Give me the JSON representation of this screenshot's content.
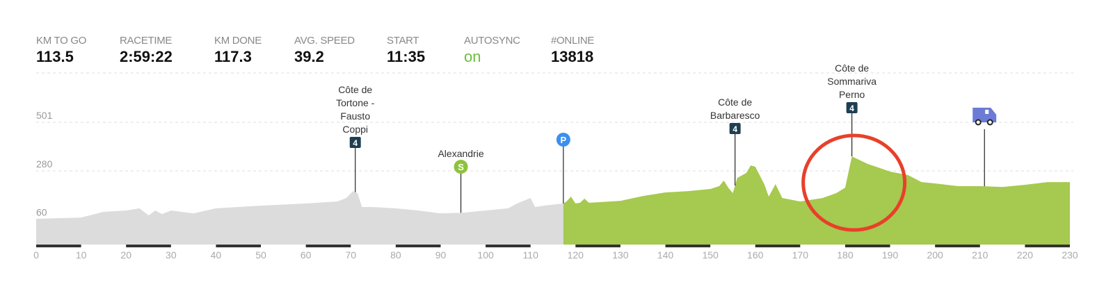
{
  "stats": [
    {
      "label": "KM TO GO",
      "value": "113.5"
    },
    {
      "label": "RACETIME",
      "value": "2:59:22"
    },
    {
      "label": "KM DONE",
      "value": "117.3"
    },
    {
      "label": "AVG. SPEED",
      "value": "39.2"
    },
    {
      "label": "START",
      "value": "11:35"
    },
    {
      "label": "AUTOSYNC",
      "value": "on"
    },
    {
      "label": "#ONLINE",
      "value": "13818"
    }
  ],
  "colors": {
    "done": "#a6c94f",
    "remaining": "#dcdcdc",
    "climb_badge": "#1e3f52",
    "sprint": "#8fc23c",
    "pause": "#3b8ff0",
    "truck": "#6b7bd6",
    "highlight_circle": "#e8402a",
    "autosync_on": "#6cbf3c"
  },
  "chart_data": {
    "type": "area",
    "xlabel": "",
    "ylabel": "",
    "xlim": [
      0,
      230
    ],
    "xticks": [
      "0",
      "10",
      "20",
      "30",
      "40",
      "50",
      "60",
      "70",
      "80",
      "90",
      "100",
      "110",
      "120",
      "130",
      "140",
      "150",
      "160",
      "170",
      "180",
      "190",
      "200",
      "210",
      "220",
      "230"
    ],
    "yticks": [
      "501",
      "280",
      "60"
    ],
    "grid": true,
    "km_done": 117.3,
    "profile": {
      "km": [
        0,
        10,
        15,
        20,
        23,
        25,
        26.5,
        28,
        30,
        35,
        40,
        50,
        60,
        67,
        69,
        70.5,
        71.5,
        72.5,
        75,
        80,
        85,
        90,
        95,
        100,
        105,
        107,
        110,
        111,
        113,
        117.3,
        118,
        119,
        120,
        121,
        122,
        123,
        130,
        135,
        140,
        145,
        150,
        152,
        153,
        154,
        155,
        156,
        158,
        159,
        160,
        162,
        163,
        164.5,
        166,
        170,
        175,
        178,
        180,
        181.5,
        185,
        190,
        194,
        197,
        200,
        205,
        210,
        215,
        220,
        225,
        230
      ],
      "elevation": [
        62,
        68,
        94,
        100,
        110,
        78,
        100,
        84,
        100,
        87,
        110,
        122,
        132,
        141,
        157,
        188,
        179,
        116,
        116,
        110,
        100,
        87,
        90,
        100,
        110,
        132,
        157,
        116,
        122,
        132,
        141,
        163,
        132,
        135,
        154,
        135,
        144,
        166,
        182,
        188,
        198,
        211,
        236,
        204,
        179,
        248,
        271,
        305,
        299,
        220,
        163,
        220,
        157,
        141,
        157,
        179,
        204,
        346,
        312,
        277,
        261,
        229,
        223,
        211,
        211,
        207,
        217,
        229,
        229
      ]
    },
    "markers": [
      {
        "km": 71,
        "type": "climb",
        "category": "4",
        "name": [
          "Côte de",
          "Tortone -",
          "Fausto",
          "Coppi"
        ]
      },
      {
        "km": 94.5,
        "type": "sprint",
        "symbol": "S",
        "name": [
          "Alexandrie"
        ]
      },
      {
        "km": 117.3,
        "type": "pause",
        "symbol": "P",
        "name": []
      },
      {
        "km": 155.5,
        "type": "climb",
        "category": "4",
        "name": [
          "Côte de",
          "Barbaresco"
        ]
      },
      {
        "km": 181.5,
        "type": "climb",
        "category": "4",
        "name": [
          "Côte de",
          "Sommariva",
          "Perno"
        ]
      },
      {
        "km": 211,
        "type": "truck",
        "name": []
      }
    ],
    "highlight_km": 181.5
  }
}
